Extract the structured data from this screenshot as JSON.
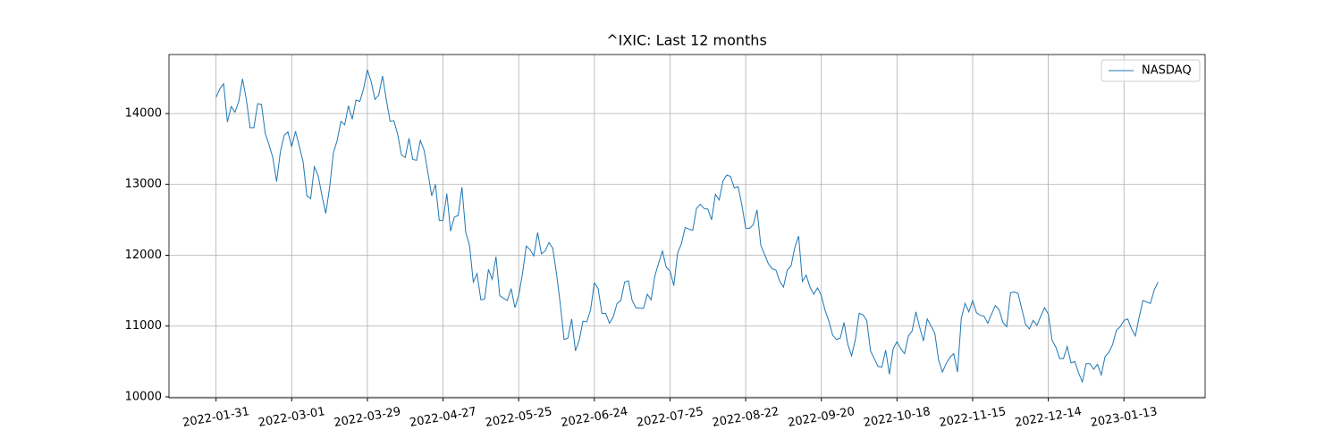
{
  "chart_data": {
    "type": "line",
    "title": "^IXIC: Last 12 months",
    "categories": [
      "2022-01-31",
      null,
      null,
      null,
      null,
      null,
      null,
      null,
      null,
      null,
      null,
      null,
      null,
      null,
      null,
      null,
      null,
      null,
      null,
      null,
      "2022-03-01",
      null,
      null,
      null,
      null,
      null,
      null,
      null,
      null,
      null,
      null,
      null,
      null,
      null,
      null,
      null,
      null,
      null,
      null,
      null,
      "2022-03-29",
      null,
      null,
      null,
      null,
      null,
      null,
      null,
      null,
      null,
      null,
      null,
      null,
      null,
      null,
      null,
      null,
      null,
      null,
      null,
      "2022-04-27",
      null,
      null,
      null,
      null,
      null,
      null,
      null,
      null,
      null,
      null,
      null,
      null,
      null,
      null,
      null,
      null,
      null,
      null,
      null,
      "2022-05-25",
      null,
      null,
      null,
      null,
      null,
      null,
      null,
      null,
      null,
      null,
      null,
      null,
      null,
      null,
      null,
      null,
      null,
      null,
      null,
      "2022-06-24",
      null,
      null,
      null,
      null,
      null,
      null,
      null,
      null,
      null,
      null,
      null,
      null,
      null,
      null,
      null,
      null,
      null,
      null,
      null,
      "2022-07-25",
      null,
      null,
      null,
      null,
      null,
      null,
      null,
      null,
      null,
      null,
      null,
      null,
      null,
      null,
      null,
      null,
      null,
      null,
      null,
      "2022-08-22",
      null,
      null,
      null,
      null,
      null,
      null,
      null,
      null,
      null,
      null,
      null,
      null,
      null,
      null,
      null,
      null,
      null,
      null,
      null,
      "2022-09-20",
      null,
      null,
      null,
      null,
      null,
      null,
      null,
      null,
      null,
      null,
      null,
      null,
      null,
      null,
      null,
      null,
      null,
      null,
      null,
      "2022-10-18",
      null,
      null,
      null,
      null,
      null,
      null,
      null,
      null,
      null,
      null,
      null,
      null,
      null,
      null,
      null,
      null,
      null,
      null,
      null,
      "2022-11-15",
      null,
      null,
      null,
      null,
      null,
      null,
      null,
      null,
      null,
      null,
      null,
      null,
      null,
      null,
      null,
      null,
      null,
      null,
      null,
      "2022-12-14",
      null,
      null,
      null,
      null,
      null,
      null,
      null,
      null,
      null,
      null,
      null,
      null,
      null,
      null,
      null,
      null,
      null,
      null,
      null,
      "2023-01-13",
      null,
      null,
      null,
      null,
      null,
      null,
      null,
      null,
      null
    ],
    "series": [
      {
        "name": "NASDAQ",
        "color": "#1f77b4",
        "values": [
          14230,
          14350,
          14420,
          13880,
          14100,
          14020,
          14170,
          14490,
          14200,
          13800,
          13800,
          14140,
          14130,
          13720,
          13560,
          13380,
          13040,
          13460,
          13690,
          13740,
          13530,
          13750,
          13540,
          13320,
          12840,
          12800,
          13250,
          13120,
          12840,
          12590,
          12950,
          13440,
          13620,
          13890,
          13840,
          14110,
          13920,
          14190,
          14170,
          14350,
          14620,
          14450,
          14200,
          14260,
          14530,
          14200,
          13890,
          13900,
          13710,
          13420,
          13380,
          13650,
          13350,
          13340,
          13620,
          13480,
          13170,
          12840,
          13000,
          12490,
          12490,
          12870,
          12340,
          12540,
          12560,
          12960,
          12320,
          12140,
          11620,
          11740,
          11370,
          11380,
          11800,
          11660,
          11980,
          11430,
          11390,
          11360,
          11530,
          11260,
          11430,
          11740,
          12130,
          12080,
          11990,
          12320,
          12020,
          12060,
          12180,
          12100,
          11740,
          11310,
          10810,
          10830,
          11100,
          10650,
          10800,
          11070,
          11060,
          11230,
          11610,
          11530,
          11180,
          11180,
          11040,
          11130,
          11320,
          11360,
          11620,
          11640,
          11360,
          11260,
          11250,
          11250,
          11450,
          11370,
          11710,
          11890,
          12060,
          11830,
          11780,
          11570,
          12030,
          12160,
          12390,
          12370,
          12350,
          12660,
          12720,
          12660,
          12650,
          12500,
          12860,
          12780,
          13050,
          13130,
          13110,
          12950,
          12970,
          12710,
          12380,
          12380,
          12430,
          12640,
          12140,
          12010,
          11880,
          11810,
          11790,
          11630,
          11550,
          11790,
          11850,
          12110,
          12270,
          11630,
          11720,
          11550,
          11450,
          11540,
          11430,
          11220,
          11070,
          10870,
          10810,
          10830,
          11050,
          10740,
          10580,
          10810,
          11180,
          11160,
          11080,
          10650,
          10540,
          10430,
          10420,
          10660,
          10320,
          10680,
          10780,
          10680,
          10610,
          10860,
          10930,
          11200,
          10980,
          10790,
          11100,
          11000,
          10900,
          10520,
          10350,
          10470,
          10560,
          10610,
          10350,
          11110,
          11320,
          11200,
          11360,
          11190,
          11150,
          11140,
          11040,
          11170,
          11290,
          11230,
          11050,
          10990,
          11470,
          11480,
          11460,
          11240,
          11020,
          10960,
          11080,
          11010,
          11140,
          11260,
          11170,
          10800,
          10700,
          10540,
          10540,
          10710,
          10480,
          10500,
          10340,
          10210,
          10470,
          10470,
          10390,
          10460,
          10310,
          10570,
          10630,
          10740,
          10940,
          10990,
          11080,
          11100,
          10960,
          10860,
          11120,
          11360,
          11340,
          11320,
          11510,
          11620
        ]
      }
    ],
    "ylim": [
      9987,
      14833
    ],
    "yticks": [
      10000,
      11000,
      12000,
      13000,
      14000
    ],
    "grid": true,
    "legend": "upper right"
  }
}
